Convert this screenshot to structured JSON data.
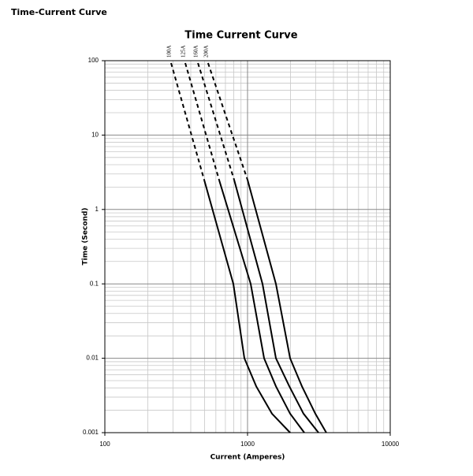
{
  "header": {
    "title": "Time-Current Curve"
  },
  "chart_data": {
    "type": "line",
    "title": "Time Current Curve",
    "x_label": "Current  (Amperes)",
    "y_label": "Time (Second)",
    "x_log": true,
    "y_log": true,
    "grid": true,
    "xlim": [
      100,
      10000
    ],
    "ylim": [
      0.001,
      100
    ],
    "xticks": [
      100,
      1000,
      10000
    ],
    "yticks": [
      0.001,
      0.01,
      0.1,
      1,
      10,
      100
    ],
    "x_minor_ticks": [
      200,
      300,
      400,
      500,
      600,
      700,
      800,
      900,
      2000,
      3000,
      4000,
      5000,
      6000,
      7000,
      8000,
      9000
    ],
    "y_minor_ticks": [
      0.002,
      0.003,
      0.004,
      0.005,
      0.006,
      0.007,
      0.008,
      0.009,
      0.02,
      0.03,
      0.04,
      0.05,
      0.06,
      0.07,
      0.08,
      0.09,
      0.2,
      0.3,
      0.4,
      0.5,
      0.6,
      0.7,
      0.8,
      0.9,
      2,
      3,
      4,
      5,
      6,
      7,
      8,
      9,
      20,
      30,
      40,
      50,
      60,
      70,
      80,
      90
    ],
    "series": [
      {
        "name": "100A",
        "color": "#000000",
        "segments": [
          {
            "style": "dashed",
            "x": [
              291,
              497
            ],
            "values": [
              93,
              2.5
            ]
          },
          {
            "style": "solid",
            "x": [
              497,
              795,
              950,
              1150,
              1483,
              1988
            ],
            "values": [
              2.5,
              0.1,
              0.01,
              0.0042,
              0.0018,
              0.001
            ]
          }
        ]
      },
      {
        "name": "125A",
        "color": "#000000",
        "segments": [
          {
            "style": "dashed",
            "x": [
              366,
              632
            ],
            "values": [
              93,
              2.5
            ]
          },
          {
            "style": "solid",
            "x": [
              632,
              1052,
              1306,
              1581,
              1988,
              2500
            ],
            "values": [
              2.5,
              0.1,
              0.01,
              0.0042,
              0.0018,
              0.001
            ]
          }
        ]
      },
      {
        "name": "160A",
        "color": "#000000",
        "segments": [
          {
            "style": "dashed",
            "x": [
              449,
              806
            ],
            "values": [
              93,
              2.5
            ]
          },
          {
            "style": "solid",
            "x": [
              806,
              1273,
              1581,
              1963,
              2468,
              3143
            ],
            "values": [
              2.5,
              0.1,
              0.01,
              0.0042,
              0.0018,
              0.001
            ]
          }
        ]
      },
      {
        "name": "200A",
        "color": "#000000",
        "segments": [
          {
            "style": "dashed",
            "x": [
              529,
              1000
            ],
            "values": [
              93,
              2.5
            ]
          },
          {
            "style": "solid",
            "x": [
              1000,
              1581,
              1988,
              2406,
              2985,
              3566
            ],
            "values": [
              2.5,
              0.1,
              0.01,
              0.0042,
              0.0018,
              0.001
            ]
          }
        ]
      }
    ]
  }
}
